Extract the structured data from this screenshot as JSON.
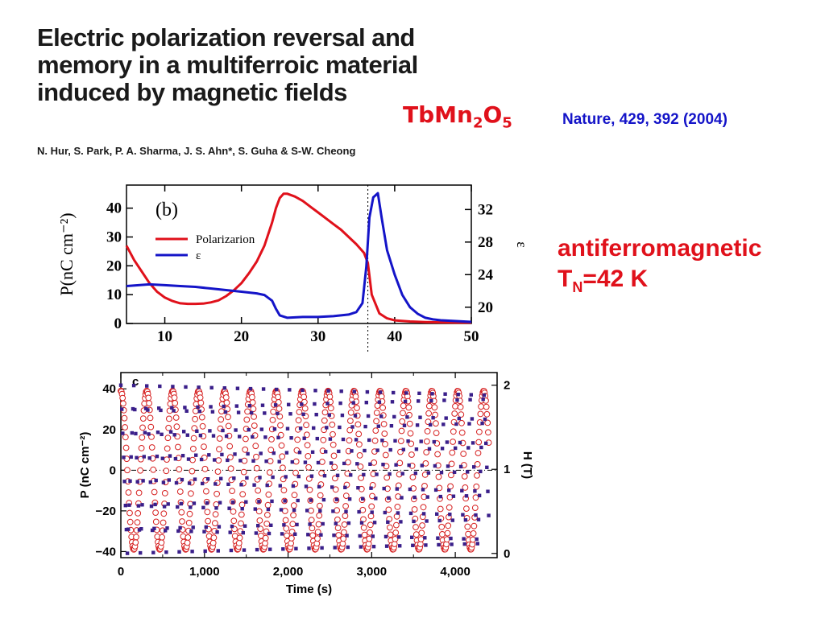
{
  "header": {
    "title_lines": [
      "Electric polarization reversal and",
      "memory in a multiferroic material",
      "induced by magnetic fields"
    ],
    "authors": "N. Hur, S. Park, P. A. Sharma, J. S. Ahn*, S. Guha & S-W. Cheong",
    "compound": {
      "base": "TbMn",
      "sub1": "2",
      "mid": "O",
      "sub2": "5"
    },
    "reference": "Nature, 429, 392 (2004)"
  },
  "note": {
    "line1": "antiferromagnetic",
    "line2_prefix": "T",
    "line2_sub": "N",
    "line2_rest": "=42 K"
  },
  "colors": {
    "red": "#e0111b",
    "blue": "#1414c8",
    "purple": "#3a1f8a"
  },
  "chart_data": [
    {
      "type": "line",
      "panel_label": "(b)",
      "title": "",
      "xlabel": "",
      "ylabel": "P(nC cm⁻²)",
      "ylabel_right": "ε",
      "xlim": [
        5,
        50
      ],
      "ylim": [
        0,
        48
      ],
      "ylim_right": [
        18,
        35
      ],
      "xticks": [
        10,
        20,
        30,
        40,
        50
      ],
      "yticks": [
        0,
        10,
        20,
        30,
        40
      ],
      "yticks_right": [
        20,
        24,
        28,
        32
      ],
      "vline_x": 36.5,
      "legend_position": "upper-left",
      "series": [
        {
          "name": "Polarizarion",
          "color": "#e0111b",
          "axis": "left",
          "x": [
            5,
            6,
            7,
            8,
            9,
            10,
            11,
            12,
            13,
            14,
            15,
            16,
            17,
            18,
            19,
            20,
            21,
            22,
            23,
            24,
            24.5,
            25,
            25.5,
            26,
            27,
            28,
            29,
            30,
            31,
            32,
            33,
            34,
            35,
            36,
            36.5,
            37,
            38,
            39,
            40,
            42,
            44,
            46,
            48,
            50
          ],
          "y": [
            27,
            22,
            18,
            14,
            11,
            9,
            7.8,
            7,
            6.8,
            6.8,
            6.9,
            7.3,
            8,
            9.5,
            11.5,
            14,
            17.5,
            21.5,
            27,
            35,
            40,
            43.5,
            45,
            45,
            44,
            42.5,
            40.5,
            38.5,
            36.5,
            34.5,
            32.5,
            30,
            27.5,
            24.5,
            21,
            10,
            3.5,
            1.8,
            1.1,
            0.7,
            0.5,
            0.4,
            0.3,
            0.3
          ]
        },
        {
          "name": "ε",
          "color": "#1414c8",
          "axis": "right",
          "x": [
            5,
            8,
            10,
            12,
            14,
            16,
            18,
            20,
            22,
            23,
            24,
            24.5,
            25,
            26,
            28,
            30,
            32,
            34,
            35,
            35.8,
            36.3,
            36.7,
            37.2,
            37.8,
            38.3,
            39,
            40,
            41,
            42,
            43,
            44,
            45,
            46,
            48,
            50
          ],
          "y": [
            22.6,
            22.8,
            22.7,
            22.6,
            22.5,
            22.3,
            22.1,
            21.9,
            21.7,
            21.5,
            20.8,
            19.8,
            19.0,
            18.7,
            18.8,
            18.8,
            18.9,
            19.1,
            19.4,
            20.5,
            25,
            31,
            33.5,
            34,
            31,
            27,
            24,
            21.5,
            20,
            19.2,
            18.7,
            18.5,
            18.4,
            18.3,
            18.2
          ]
        }
      ]
    },
    {
      "type": "scatter",
      "panel_label": "c",
      "title": "",
      "xlabel": "Time (s)",
      "ylabel": "P (nC cm⁻²)",
      "ylabel_right": "H (T)",
      "xlim": [
        0,
        4500
      ],
      "ylim": [
        -43,
        48
      ],
      "ylim_right": [
        -0.05,
        2.15
      ],
      "xticks": [
        0,
        1000,
        2000,
        3000,
        4000
      ],
      "xtick_labels": [
        "0",
        "1,000",
        "2,000",
        "3,000",
        "4,000"
      ],
      "yticks": [
        -40,
        -20,
        0,
        20,
        40
      ],
      "ytick_labels": [
        "−40",
        "−20",
        "0",
        "20",
        "40"
      ],
      "yticks_right": [
        0,
        1,
        2
      ],
      "zero_dashed_line": true,
      "series": [
        {
          "name": "P",
          "marker": "open-circle",
          "color": "#d62020",
          "axis": "left",
          "period_s": 310,
          "amplitude": 39,
          "phase_x0": 0,
          "points_per_period": 44
        },
        {
          "name": "H",
          "marker": "filled-square",
          "color": "#3a1f8a",
          "axis": "right",
          "period_s": 155,
          "amplitude": 1,
          "offset": 1,
          "points_per_period": 14
        }
      ],
      "x_range_data": [
        0,
        4400
      ]
    }
  ]
}
